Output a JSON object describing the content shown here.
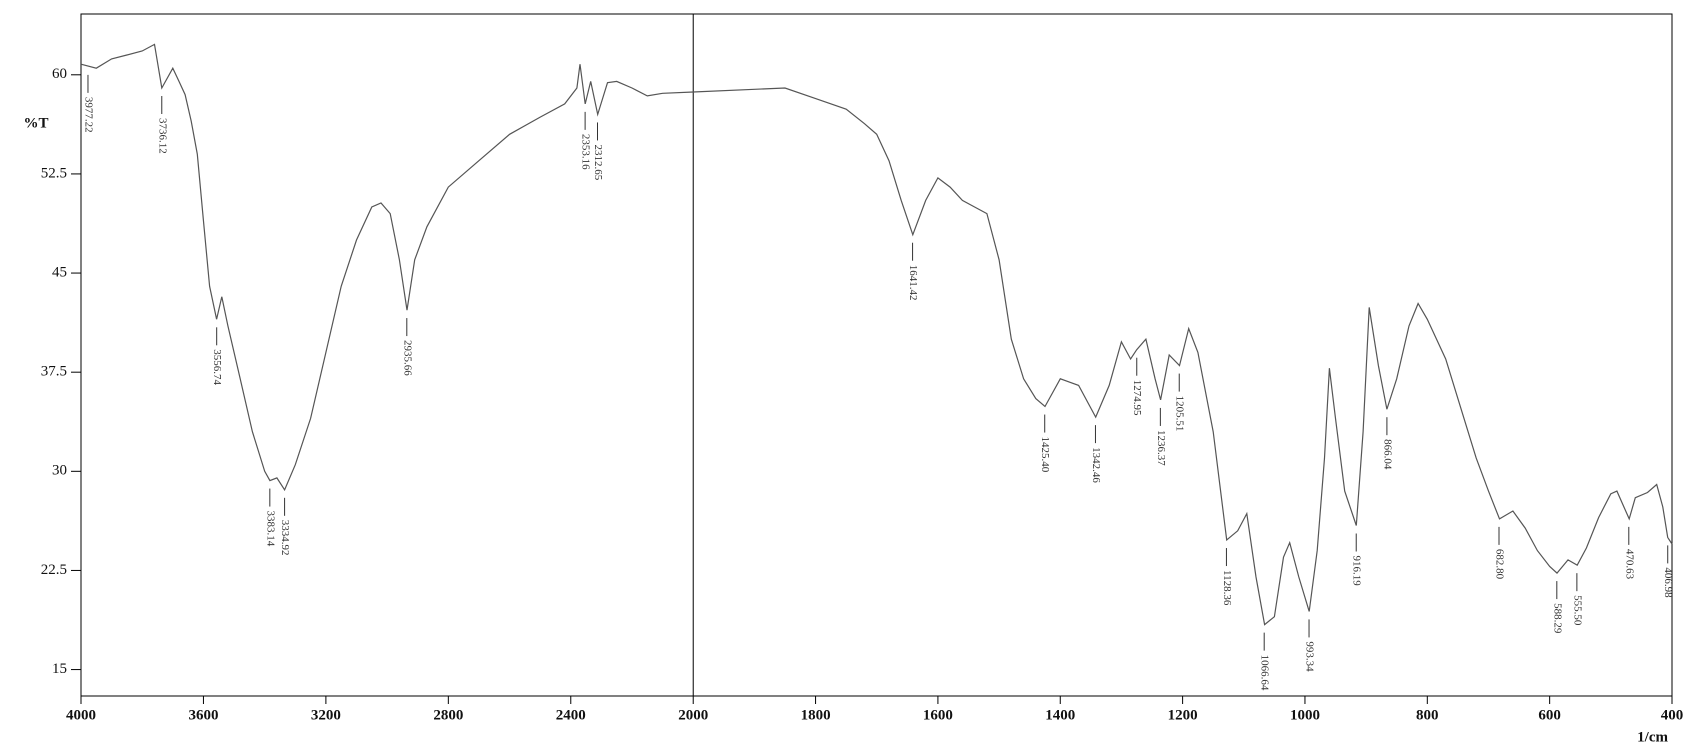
{
  "chart_data": {
    "type": "line",
    "y_label": "%T",
    "x_label": "1/cm",
    "color": "#555555",
    "xlim": [
      4000,
      400
    ],
    "xbreak": 2000,
    "xticks": [
      4000,
      3600,
      3200,
      2800,
      2400,
      2000,
      1800,
      1600,
      1400,
      1200,
      1000,
      800,
      600,
      400
    ],
    "ylim": [
      13,
      64.6
    ],
    "yticks": [
      60,
      52.5,
      45,
      37.5,
      30,
      22.5,
      15
    ],
    "x": [
      4000,
      3950,
      3900,
      3850,
      3800,
      3760,
      3736,
      3700,
      3680,
      3660,
      3640,
      3620,
      3600,
      3580,
      3557,
      3540,
      3520,
      3480,
      3440,
      3400,
      3383,
      3360,
      3335,
      3300,
      3250,
      3200,
      3150,
      3100,
      3050,
      3020,
      2990,
      2960,
      2935,
      2910,
      2870,
      2800,
      2700,
      2600,
      2500,
      2420,
      2380,
      2370,
      2353,
      2335,
      2312,
      2280,
      2250,
      2200,
      2150,
      2100,
      2000,
      1900,
      1850,
      1800,
      1750,
      1720,
      1700,
      1680,
      1660,
      1641,
      1620,
      1600,
      1580,
      1560,
      1540,
      1520,
      1500,
      1480,
      1460,
      1440,
      1425,
      1400,
      1370,
      1342,
      1320,
      1300,
      1285,
      1275,
      1260,
      1245,
      1236,
      1222,
      1205,
      1190,
      1175,
      1150,
      1128,
      1110,
      1095,
      1080,
      1066,
      1050,
      1035,
      1025,
      1010,
      993,
      980,
      968,
      960,
      950,
      935,
      916,
      905,
      895,
      880,
      866,
      850,
      830,
      815,
      800,
      770,
      740,
      720,
      700,
      682,
      660,
      640,
      620,
      600,
      588,
      570,
      555,
      540,
      520,
      500,
      490,
      470,
      460,
      440,
      425,
      415,
      407,
      400
    ],
    "values": [
      60.8,
      60.5,
      61.2,
      61.5,
      61.8,
      62.3,
      59.0,
      60.5,
      59.5,
      58.5,
      56.5,
      54,
      49,
      44,
      41.5,
      43.2,
      41,
      37,
      33,
      30,
      29.3,
      29.5,
      28.6,
      30.5,
      34,
      39,
      44,
      47.5,
      50,
      50.3,
      49.5,
      46,
      42.2,
      46,
      48.5,
      51.5,
      53.5,
      55.5,
      56.8,
      57.8,
      59,
      60.8,
      57.8,
      59.5,
      57.0,
      59.4,
      59.5,
      59.0,
      58.4,
      58.6,
      58.7,
      58.9,
      59.0,
      58.2,
      57.4,
      56.3,
      55.5,
      53.5,
      50.5,
      47.9,
      50.5,
      52.2,
      51.5,
      50.5,
      50.0,
      49.5,
      46,
      40,
      37,
      35.5,
      34.9,
      37,
      36.5,
      34.1,
      36.5,
      39.8,
      38.5,
      39.2,
      40,
      37,
      35.4,
      38.8,
      38.0,
      40.8,
      39,
      33,
      24.8,
      25.5,
      26.8,
      22,
      18.4,
      19,
      23.5,
      24.6,
      22,
      19.4,
      24,
      31,
      37.8,
      34,
      28.5,
      25.9,
      33,
      42.4,
      38,
      34.7,
      37,
      41,
      42.7,
      41.5,
      38.5,
      34,
      31,
      28.5,
      26.4,
      27,
      25.7,
      24,
      22.8,
      22.3,
      23.3,
      22.9,
      24.2,
      26.5,
      28.3,
      28.5,
      26.4,
      28,
      28.4,
      29,
      27.3,
      25.0,
      24.5
    ],
    "peaks": {
      "x": [
        3977.22,
        3736.12,
        3556.74,
        3383.14,
        3334.92,
        2935.66,
        2353.16,
        2312.65,
        1641.42,
        1425.4,
        1342.46,
        1274.95,
        1236.37,
        1205.51,
        1128.36,
        1066.64,
        993.34,
        916.19,
        866.04,
        682.8,
        588.29,
        555.5,
        470.63,
        406.98
      ],
      "value_labels": [
        "3977.22",
        "3736.12",
        "3556.74",
        "3383.14",
        "3334.92",
        "2935.66",
        "2353.16",
        "2312.65",
        "1641.42",
        "1425.40",
        "1342.46",
        "1274.95",
        "1236.37",
        "1205.51",
        "1128.36",
        "1066.64",
        "993.34",
        "916.19",
        "866.04",
        "682.80",
        "588.29",
        "555.50",
        "470.63",
        "406.98"
      ],
      "y": [
        60.6,
        59.0,
        41.5,
        29.3,
        28.6,
        42.2,
        57.8,
        57.0,
        47.9,
        34.9,
        34.1,
        39.2,
        35.4,
        38.0,
        24.8,
        18.4,
        19.4,
        25.9,
        34.7,
        26.4,
        22.3,
        22.9,
        26.4,
        25.0
      ]
    }
  }
}
